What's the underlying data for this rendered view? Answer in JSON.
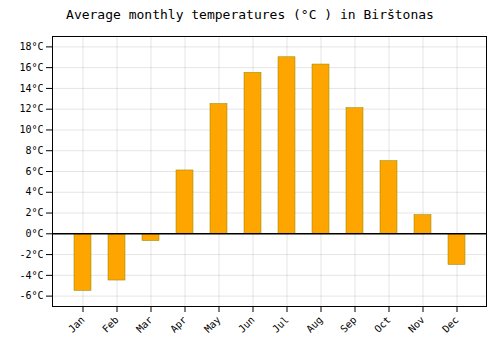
{
  "chart_data": {
    "type": "bar",
    "title": "Average monthly temperatures (°C ) in Birštonas",
    "categories": [
      "Jan",
      "Feb",
      "Mar",
      "Apr",
      "May",
      "Jun",
      "Jul",
      "Aug",
      "Sep",
      "Oct",
      "Nov",
      "Dec"
    ],
    "values": [
      -5.5,
      -4.5,
      -0.7,
      6.1,
      12.5,
      15.5,
      17.0,
      16.3,
      12.1,
      7.0,
      1.8,
      -3.0
    ],
    "color": "#FFA500",
    "ylim": [
      -7,
      19
    ],
    "yticks": [
      {
        "value": -6,
        "label": "-6°C"
      },
      {
        "value": -4,
        "label": "-4°C"
      },
      {
        "value": -2,
        "label": "-2°C"
      },
      {
        "value": 0,
        "label": "0°C"
      },
      {
        "value": 2,
        "label": "2°C"
      },
      {
        "value": 4,
        "label": "4°C"
      },
      {
        "value": 6,
        "label": "6°C"
      },
      {
        "value": 8,
        "label": "8°C"
      },
      {
        "value": 10,
        "label": "10°C"
      },
      {
        "value": 12,
        "label": "12°C"
      },
      {
        "value": 14,
        "label": "14°C"
      },
      {
        "value": 16,
        "label": "16°C"
      },
      {
        "value": 18,
        "label": "18°C"
      }
    ],
    "grid": true
  }
}
